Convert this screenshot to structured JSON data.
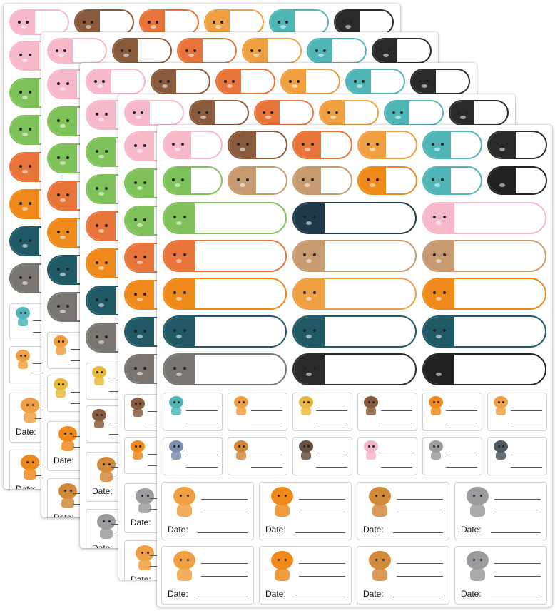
{
  "labels": {
    "date_label": "Date:"
  },
  "colors": {
    "pig": "#f7b8c8",
    "bear": "#8a5a3c",
    "fox": "#e8743a",
    "tiger": "#f0a040",
    "blue": "#4fb6b8",
    "black": "#2a2a2a",
    "frog": "#7fc25a",
    "lion": "#ef8a1a",
    "teal_dark": "#1f5a66",
    "raccoon": "#7a7570",
    "penguin": "#1f3a4a",
    "striped": "#c89a70",
    "panda": "#222222",
    "sheet_bg": "#ffffff"
  }
}
